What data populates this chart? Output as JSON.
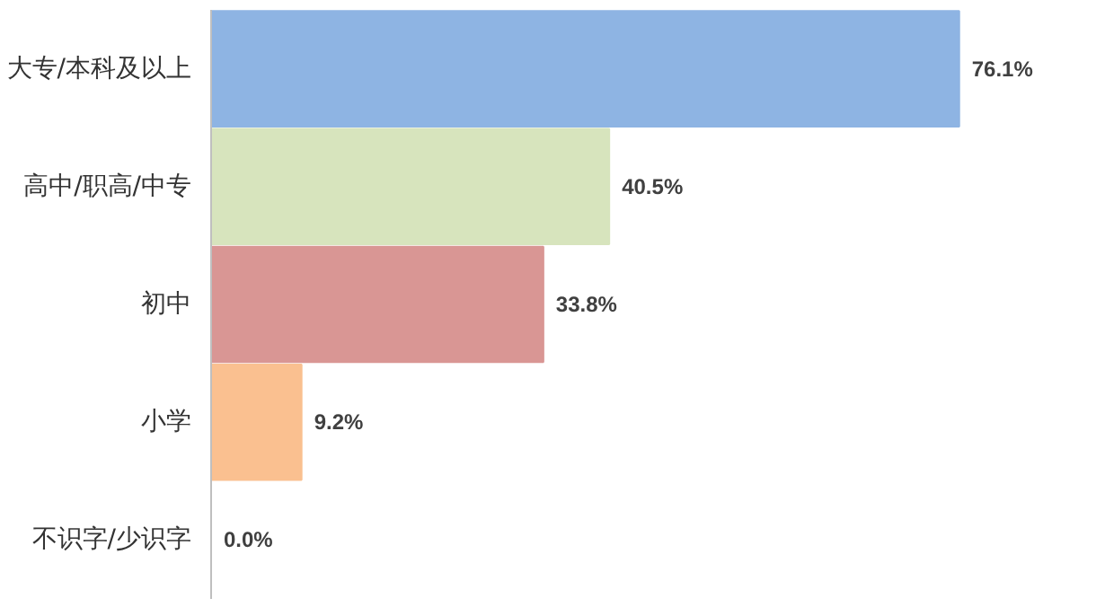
{
  "chart_data": {
    "type": "bar",
    "orientation": "horizontal",
    "categories": [
      "大专/本科及以上",
      "高中/职高/中专",
      "初中",
      "小学",
      "不识字/少识字"
    ],
    "values": [
      76.1,
      40.5,
      33.8,
      9.2,
      0.0
    ],
    "value_labels": [
      "76.1%",
      "40.5%",
      "33.8%",
      "9.2%",
      "0.0%"
    ],
    "colors": [
      "#8eb4e3",
      "#d7e4bd",
      "#d99694",
      "#fac090",
      "#c0c0c0"
    ],
    "grid": false
  }
}
